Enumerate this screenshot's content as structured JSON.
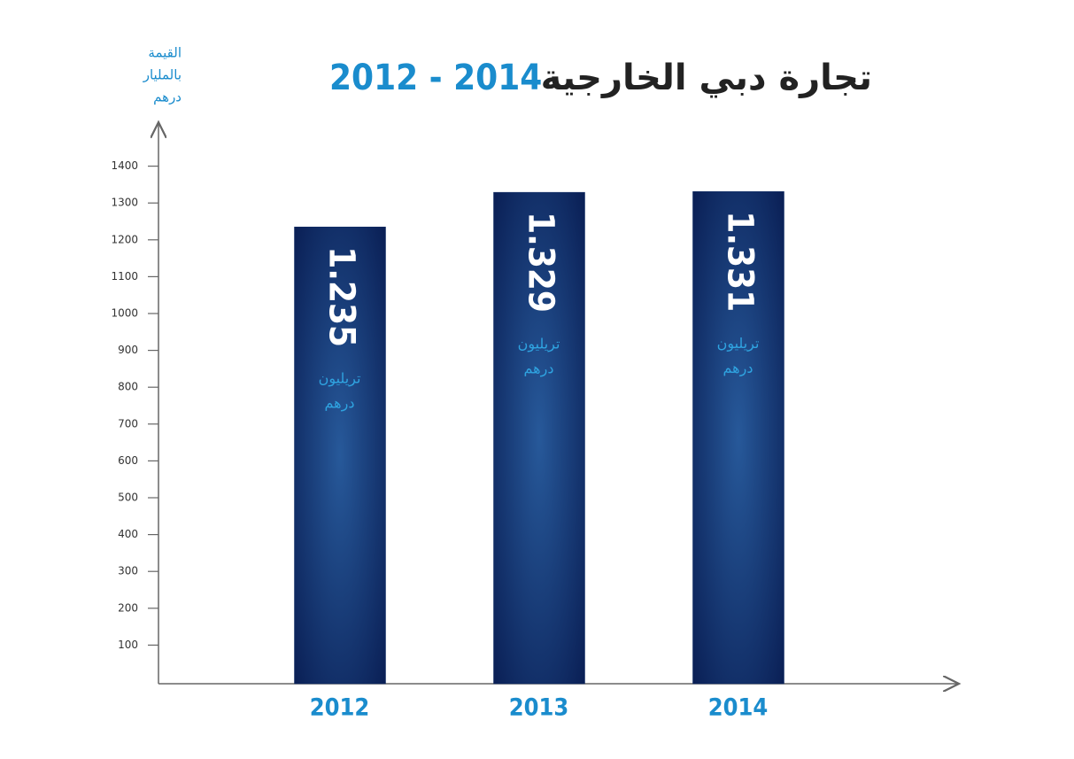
{
  "chart_data": {
    "type": "bar",
    "title": "تجارة دبي الخارجية",
    "title_years": "2012 - 2014",
    "y_label": [
      "القيمة",
      "بالمليار",
      "درهم"
    ],
    "categories": [
      "2012",
      "2013",
      "2014"
    ],
    "values": [
      1235,
      1329,
      1331
    ],
    "value_labels": [
      "1.235",
      "1.329",
      "1.331"
    ],
    "value_unit": [
      "تريليون",
      "درهم"
    ],
    "color": "#0d2a63",
    "ylim": [
      0,
      1500
    ],
    "yticks": [
      100,
      200,
      300,
      400,
      500,
      600,
      700,
      800,
      900,
      1000,
      1100,
      1200,
      1300,
      1400
    ]
  }
}
